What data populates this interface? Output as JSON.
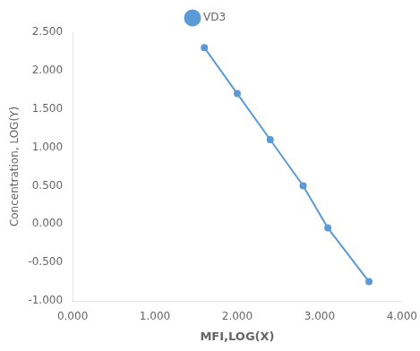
{
  "chart_data": {
    "type": "line",
    "x": [
      1.6,
      2.0,
      2.4,
      2.8,
      3.1,
      3.6
    ],
    "series": [
      {
        "name": "VD3",
        "color": "#5b9bd5",
        "marker": "circle",
        "values": [
          2.3,
          1.7,
          1.1,
          0.5,
          -0.05,
          -0.75
        ]
      }
    ],
    "xlabel": "MFI,LOG(X)",
    "ylabel": "Concentration, LOG(Y)",
    "xlim": [
      0.0,
      4.0
    ],
    "ylim": [
      -1.0,
      2.5
    ],
    "xticks": [
      {
        "value": 0.0,
        "label": "0.000"
      },
      {
        "value": 1.0,
        "label": "1.000"
      },
      {
        "value": 2.0,
        "label": "2.000"
      },
      {
        "value": 3.0,
        "label": "3.000"
      },
      {
        "value": 4.0,
        "label": "4.000"
      }
    ],
    "yticks": [
      {
        "value": -1.0,
        "label": "-1.000"
      },
      {
        "value": -0.5,
        "label": "-0.500"
      },
      {
        "value": 0.0,
        "label": "0.000"
      },
      {
        "value": 0.5,
        "label": "0.500"
      },
      {
        "value": 1.0,
        "label": "1.000"
      },
      {
        "value": 1.5,
        "label": "1.500"
      },
      {
        "value": 2.0,
        "label": "2.000"
      },
      {
        "value": 2.5,
        "label": "2.500"
      }
    ],
    "grid": false,
    "legend": "top"
  }
}
